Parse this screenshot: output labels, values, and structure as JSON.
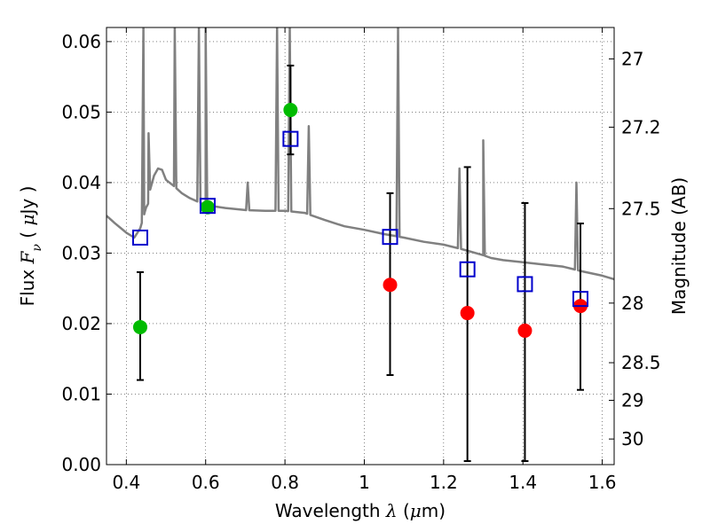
{
  "chart_data": {
    "type": "scatter",
    "xlabel": {
      "prefix": "Wavelength  ",
      "symbol": "λ",
      "suffix": " (",
      "mu": "μ",
      "unit": "m)"
    },
    "ylabel": {
      "prefix": "Flux  ",
      "symbol": "F",
      "sub": "ν",
      "suffix": "  ( ",
      "mu": "μ",
      "unit": "Jy )"
    },
    "y2label": "Magnitude (AB)",
    "xlim": [
      0.35,
      1.63
    ],
    "ylim": [
      0.0,
      0.062
    ],
    "x_ticks": [
      0.4,
      0.6,
      0.8,
      1.0,
      1.2,
      1.4,
      1.6
    ],
    "x_tick_labels": [
      "0.4",
      "0.6",
      "0.8",
      "1",
      "1.2",
      "1.4",
      "1.6"
    ],
    "y_ticks": [
      0.0,
      0.01,
      0.02,
      0.03,
      0.04,
      0.05,
      0.06
    ],
    "y_tick_labels": [
      "0.00",
      "0.01",
      "0.02",
      "0.03",
      "0.04",
      "0.05",
      "0.06"
    ],
    "y2_ticks": [
      27,
      27.2,
      27.5,
      28,
      28.5,
      29,
      30
    ],
    "y2_tick_labels": [
      "27",
      "27.2",
      "27.5",
      "28",
      "28.5",
      "29",
      "30"
    ],
    "grid": true,
    "series": [
      {
        "kind": "model_spectrum",
        "color": "#808080",
        "points": [
          [
            0.35,
            0.0353
          ],
          [
            0.37,
            0.0343
          ],
          [
            0.4,
            0.0329
          ],
          [
            0.42,
            0.0322
          ],
          [
            0.435,
            0.0335
          ],
          [
            0.445,
            0.0355
          ],
          [
            0.45,
            0.0365
          ],
          [
            0.455,
            0.037
          ],
          [
            0.46,
            0.039
          ],
          [
            0.47,
            0.041
          ],
          [
            0.48,
            0.042
          ],
          [
            0.49,
            0.0418
          ],
          [
            0.5,
            0.0404
          ],
          [
            0.52,
            0.0395
          ],
          [
            0.54,
            0.0385
          ],
          [
            0.56,
            0.0378
          ],
          [
            0.6,
            0.0368
          ],
          [
            0.65,
            0.0364
          ],
          [
            0.7,
            0.0361
          ],
          [
            0.75,
            0.036
          ],
          [
            0.8,
            0.036
          ],
          [
            0.85,
            0.0357
          ],
          [
            0.9,
            0.0347
          ],
          [
            0.95,
            0.0338
          ],
          [
            1.0,
            0.0333
          ],
          [
            1.05,
            0.0327
          ],
          [
            1.1,
            0.0322
          ],
          [
            1.15,
            0.0316
          ],
          [
            1.2,
            0.0312
          ],
          [
            1.25,
            0.0305
          ],
          [
            1.3,
            0.0297
          ],
          [
            1.32,
            0.0293
          ],
          [
            1.35,
            0.029
          ],
          [
            1.4,
            0.0287
          ],
          [
            1.45,
            0.0284
          ],
          [
            1.5,
            0.0281
          ],
          [
            1.55,
            0.0274
          ],
          [
            1.6,
            0.0268
          ],
          [
            1.63,
            0.0263
          ]
        ],
        "emission_lines": [
          [
            0.443,
            0.062
          ],
          [
            0.456,
            0.047
          ],
          [
            0.522,
            0.062
          ],
          [
            0.583,
            0.062
          ],
          [
            0.6,
            0.062
          ],
          [
            0.706,
            0.04
          ],
          [
            0.78,
            0.062
          ],
          [
            0.812,
            0.062
          ],
          [
            0.86,
            0.048
          ],
          [
            1.085,
            0.062
          ],
          [
            1.24,
            0.042
          ],
          [
            1.3,
            0.046
          ],
          [
            1.535,
            0.04
          ]
        ]
      },
      {
        "kind": "observed_detection",
        "marker": "filled-circle",
        "color": "#00bb00",
        "points": [
          {
            "x": 0.435,
            "y": 0.0195,
            "err": [
              0.012,
              0.0273
            ]
          },
          {
            "x": 0.605,
            "y": 0.0365
          },
          {
            "x": 0.814,
            "y": 0.0503,
            "err": [
              0.044,
              0.0566
            ]
          }
        ]
      },
      {
        "kind": "observed_limit",
        "marker": "filled-circle",
        "color": "#ff0000",
        "points": [
          {
            "x": 1.065,
            "y": 0.0255,
            "err": [
              0.0127,
              0.0385
            ]
          },
          {
            "x": 1.26,
            "y": 0.0215,
            "err": [
              0.0005,
              0.0422
            ]
          },
          {
            "x": 1.405,
            "y": 0.019,
            "err": [
              0.0005,
              0.0371
            ]
          },
          {
            "x": 1.545,
            "y": 0.0225,
            "err": [
              0.0106,
              0.0342
            ]
          }
        ]
      },
      {
        "kind": "model_photometry",
        "marker": "open-square",
        "color": "#0000cc",
        "points": [
          {
            "x": 0.435,
            "y": 0.0322
          },
          {
            "x": 0.605,
            "y": 0.0367
          },
          {
            "x": 0.814,
            "y": 0.0462
          },
          {
            "x": 1.065,
            "y": 0.0323
          },
          {
            "x": 1.26,
            "y": 0.0277
          },
          {
            "x": 1.405,
            "y": 0.0256
          },
          {
            "x": 1.545,
            "y": 0.0235
          }
        ]
      }
    ]
  }
}
